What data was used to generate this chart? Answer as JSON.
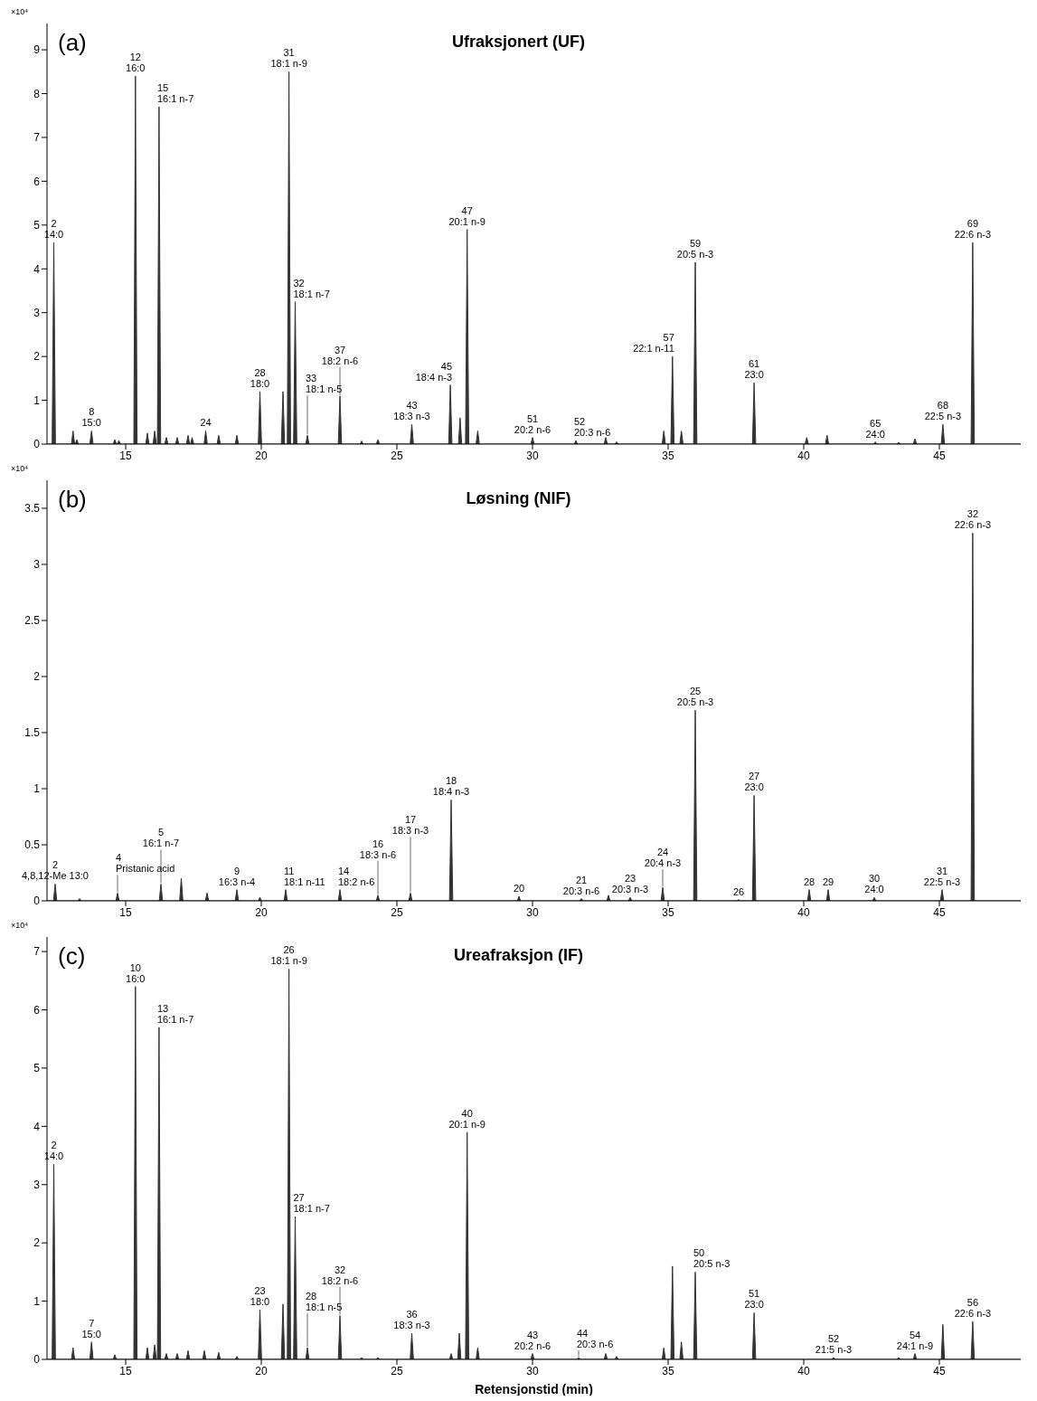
{
  "chart_data": [
    {
      "type": "area",
      "title": "Ufraksjonert (UF)",
      "ylabel": "×10⁴",
      "xlim": [
        12.1,
        48
      ],
      "xticks": [
        15,
        20,
        25,
        30,
        35,
        40,
        45
      ],
      "ylim": [
        0,
        9.6
      ],
      "yticks": [
        0,
        1,
        2,
        3,
        4,
        5,
        6,
        7,
        8,
        9
      ],
      "annotations": [
        "(a)",
        {
          "text": "2\n14:0",
          "x": 12.35,
          "y": 4.6
        },
        {
          "text": "8\n15:0",
          "x": 13.74,
          "y": 0.3
        },
        {
          "text": "12\n16:0",
          "x": 15.36,
          "y": 8.4
        },
        {
          "text": "15\n16:1 n-7",
          "x": 16.23,
          "y": 7.7
        },
        {
          "text": "24",
          "x": 17.95,
          "y": 0.3
        },
        {
          "text": "28\n18:0",
          "x": 19.95,
          "y": 1.2
        },
        {
          "text": "31\n18:1 n-9",
          "x": 21.02,
          "y": 8.5
        },
        {
          "text": "32\n18:1 n-7",
          "x": 21.25,
          "y": 3.25
        },
        {
          "text": "33\n18:1 n-5",
          "x": 21.7,
          "y": 0.2
        },
        {
          "text": "37\n18:2 n-6",
          "x": 22.9,
          "y": 1.1
        },
        {
          "text": "43\n18:3 n-3",
          "x": 25.55,
          "y": 0.45
        },
        {
          "text": "45\n18:4 n-3",
          "x": 26.97,
          "y": 1.35
        },
        {
          "text": "47\n20:1 n-9",
          "x": 27.59,
          "y": 4.9
        },
        {
          "text": "51\n20:2 n-6",
          "x": 30.0,
          "y": 0.15
        },
        {
          "text": "52\n20:3 n-6",
          "x": 31.6,
          "y": 0.08
        },
        {
          "text": "57\n22:1 n-11",
          "x": 35.16,
          "y": 2.0
        },
        {
          "text": "59\n20:5 n-3",
          "x": 36.0,
          "y": 4.15
        },
        {
          "text": "61\n23:0",
          "x": 38.17,
          "y": 1.4
        },
        {
          "text": "65\n24:0",
          "x": 42.64,
          "y": 0.05
        },
        {
          "text": "68\n22:5 n-3",
          "x": 45.13,
          "y": 0.45
        },
        {
          "text": "69\n22:6 n-3",
          "x": 46.23,
          "y": 4.6
        }
      ],
      "series": [
        {
          "color": "#333333",
          "x": [
            12.1,
            12.29,
            12.35,
            12.41,
            13.0,
            13.06,
            13.12,
            13.14,
            13.2,
            13.26,
            13.68,
            13.74,
            13.8,
            14.54,
            14.6,
            14.66,
            14.69,
            14.75,
            14.81,
            15.3,
            15.36,
            15.42,
            15.74,
            15.8,
            15.86,
            16.01,
            16.07,
            16.13,
            16.17,
            16.23,
            16.29,
            16.44,
            16.5,
            16.56,
            16.84,
            16.9,
            16.96,
            17.24,
            17.3,
            17.36,
            17.39,
            17.45,
            17.51,
            17.89,
            17.95,
            18.01,
            18.37,
            18.43,
            18.49,
            19.04,
            19.1,
            19.16,
            19.89,
            19.95,
            20.01,
            20.74,
            20.8,
            20.86,
            20.96,
            21.02,
            21.08,
            21.19,
            21.25,
            21.31,
            21.64,
            21.7,
            21.76,
            22.84,
            22.9,
            22.96,
            23.64,
            23.7,
            23.76,
            24.24,
            24.3,
            24.36,
            25.49,
            25.55,
            25.61,
            26.91,
            26.97,
            27.03,
            27.27,
            27.33,
            27.39,
            27.53,
            27.59,
            27.65,
            27.92,
            27.98,
            28.04,
            29.94,
            30.0,
            30.06,
            31.54,
            31.6,
            31.66,
            32.64,
            32.7,
            32.76,
            33.04,
            33.1,
            33.16,
            34.78,
            34.84,
            34.9,
            35.1,
            35.16,
            35.22,
            35.43,
            35.49,
            35.55,
            35.94,
            36.0,
            36.06,
            38.11,
            38.17,
            38.23,
            40.05,
            40.11,
            40.17,
            40.8,
            40.86,
            40.92,
            42.58,
            42.64,
            42.7,
            43.44,
            43.5,
            43.56,
            44.04,
            44.1,
            44.16,
            45.07,
            45.13,
            45.19,
            46.17,
            46.23,
            46.29,
            48
          ],
          "values": [
            0,
            0,
            4.6,
            0,
            0,
            0.3,
            0,
            0,
            0.1,
            0,
            0,
            0.3,
            0,
            0,
            0.1,
            0,
            0,
            0.08,
            0,
            0,
            8.4,
            0,
            0,
            0.25,
            0,
            0,
            0.3,
            0,
            0,
            7.7,
            0,
            0,
            0.15,
            0,
            0,
            0.15,
            0,
            0,
            0.2,
            0,
            0,
            0.15,
            0,
            0,
            0.3,
            0,
            0,
            0.2,
            0,
            0,
            0.2,
            0,
            0,
            1.2,
            0,
            0,
            1.2,
            0,
            0,
            8.5,
            0,
            0,
            3.25,
            0,
            0,
            0.2,
            0,
            0,
            1.1,
            0,
            0,
            0.07,
            0,
            0,
            0.1,
            0,
            0,
            0.45,
            0,
            0,
            1.35,
            0,
            0,
            0.6,
            0,
            0,
            4.9,
            0,
            0,
            0.3,
            0,
            0,
            0.15,
            0,
            0,
            0.08,
            0,
            0,
            0.15,
            0,
            0,
            0.05,
            0,
            0,
            0.3,
            0,
            0,
            2.0,
            0,
            0,
            0.3,
            0,
            0,
            4.15,
            0,
            0,
            1.4,
            0,
            0,
            0.15,
            0,
            0,
            0.2,
            0,
            0,
            0.05,
            0,
            0,
            0.04,
            0,
            0,
            0.12,
            0,
            0,
            0.45,
            0,
            0,
            4.6,
            0,
            0
          ]
        }
      ]
    },
    {
      "type": "area",
      "title": "Løsning (NIF)",
      "ylabel": "×10⁴",
      "xlim": [
        12.1,
        48
      ],
      "xticks": [
        15,
        20,
        25,
        30,
        35,
        40,
        45
      ],
      "ylim": [
        0,
        3.75
      ],
      "yticks": [
        0,
        0.5,
        1,
        1.5,
        2,
        2.5,
        3,
        3.5
      ],
      "annotations": [
        "(b)",
        {
          "text": "2\n4,8,12-Me 13:0",
          "x": 12.4,
          "y": 0.15
        },
        {
          "text": "4\nPristanic acid",
          "x": 14.7,
          "y": 0.07
        },
        {
          "text": "5\n16:1 n-7",
          "x": 16.3,
          "y": 0.15
        },
        {
          "text": "9\n16:3 n-4",
          "x": 19.1,
          "y": 0.1
        },
        {
          "text": "11\n18:1 n-11",
          "x": 20.9,
          "y": 0.1
        },
        {
          "text": "14\n18:2 n-6",
          "x": 22.9,
          "y": 0.1
        },
        {
          "text": "16\n18:3 n-6",
          "x": 24.3,
          "y": 0.05
        },
        {
          "text": "17\n18:3 n-3",
          "x": 25.5,
          "y": 0.07
        },
        {
          "text": "18\n18:4 n-3",
          "x": 27.0,
          "y": 0.9
        },
        {
          "text": "20",
          "x": 29.5,
          "y": 0.04
        },
        {
          "text": "21\n20:3 n-6",
          "x": 31.8,
          "y": 0.02
        },
        {
          "text": "23\n20:3 n-3",
          "x": 33.6,
          "y": 0.03
        },
        {
          "text": "24\n20:4 n-3",
          "x": 34.8,
          "y": 0.12
        },
        {
          "text": "25\n20:5 n-3",
          "x": 36.0,
          "y": 1.7
        },
        {
          "text": "26",
          "x": 37.6,
          "y": 0.01
        },
        {
          "text": "27\n23:0",
          "x": 38.17,
          "y": 0.94
        },
        {
          "text": "28",
          "x": 40.2,
          "y": 0.1
        },
        {
          "text": "29",
          "x": 40.9,
          "y": 0.1
        },
        {
          "text": "30\n24:0",
          "x": 42.6,
          "y": 0.03
        },
        {
          "text": "31\n22:5 n-3",
          "x": 45.1,
          "y": 0.1
        },
        {
          "text": "32\n22:6 n-3",
          "x": 46.23,
          "y": 3.28
        }
      ],
      "series": [
        {
          "color": "#333333",
          "x": [
            12.1,
            12.34,
            12.4,
            12.46,
            13.24,
            13.3,
            13.36,
            14.64,
            14.7,
            14.76,
            16.24,
            16.3,
            16.36,
            16.99,
            17.05,
            17.11,
            17.94,
            18.0,
            18.06,
            19.04,
            19.1,
            19.16,
            19.89,
            19.95,
            20.01,
            20.84,
            20.9,
            20.96,
            22.84,
            22.9,
            22.96,
            24.24,
            24.3,
            24.36,
            25.44,
            25.5,
            25.56,
            26.94,
            27.0,
            27.06,
            29.44,
            29.5,
            29.56,
            31.74,
            31.8,
            31.86,
            32.74,
            32.8,
            32.86,
            33.54,
            33.6,
            33.66,
            34.74,
            34.8,
            34.86,
            35.94,
            36.0,
            36.06,
            37.54,
            37.6,
            37.66,
            38.11,
            38.17,
            38.23,
            40.14,
            40.2,
            40.26,
            40.84,
            40.9,
            40.96,
            42.54,
            42.6,
            42.66,
            45.04,
            45.1,
            45.16,
            46.17,
            46.23,
            46.29,
            48
          ],
          "values": [
            0,
            0,
            0.15,
            0,
            0,
            0.02,
            0,
            0,
            0.07,
            0,
            0,
            0.15,
            0,
            0,
            0.2,
            0,
            0,
            0.07,
            0,
            0,
            0.1,
            0,
            0,
            0.03,
            0,
            0,
            0.1,
            0,
            0,
            0.1,
            0,
            0,
            0.05,
            0,
            0,
            0.07,
            0,
            0,
            0.9,
            0,
            0,
            0.04,
            0,
            0,
            0.02,
            0,
            0,
            0.05,
            0,
            0,
            0.03,
            0,
            0,
            0.12,
            0,
            0,
            1.7,
            0,
            0,
            0.01,
            0,
            0,
            0.94,
            0,
            0,
            0.1,
            0,
            0,
            0.1,
            0,
            0,
            0.03,
            0,
            0,
            0.1,
            0,
            0,
            3.28,
            0,
            0
          ]
        }
      ]
    },
    {
      "type": "area",
      "title": "Ureafraksjon (IF)",
      "ylabel": "×10⁴",
      "xlabel": "Retensjonstid (min)",
      "xlim": [
        12.1,
        48
      ],
      "xticks": [
        15,
        20,
        25,
        30,
        35,
        40,
        45
      ],
      "ylim": [
        0,
        7.25
      ],
      "yticks": [
        0,
        1,
        2,
        3,
        4,
        5,
        6,
        7
      ],
      "annotations": [
        "(c)",
        {
          "text": "2\n14:0",
          "x": 12.35,
          "y": 3.35
        },
        {
          "text": "7\n15:0",
          "x": 13.74,
          "y": 0.3
        },
        {
          "text": "10\n16:0",
          "x": 15.36,
          "y": 6.4
        },
        {
          "text": "13\n16:1 n-7",
          "x": 16.23,
          "y": 5.7
        },
        {
          "text": "23\n18:0",
          "x": 19.95,
          "y": 0.85
        },
        {
          "text": "26\n18:1 n-9",
          "x": 21.02,
          "y": 6.7
        },
        {
          "text": "27\n18:1 n-7",
          "x": 21.25,
          "y": 2.45
        },
        {
          "text": "28\n18:1 n-5",
          "x": 21.7,
          "y": 0.2
        },
        {
          "text": "32\n18:2 n-6",
          "x": 22.9,
          "y": 0.75
        },
        {
          "text": "36\n18:3 n-3",
          "x": 25.55,
          "y": 0.45
        },
        {
          "text": "40\n20:1 n-9",
          "x": 27.59,
          "y": 3.9
        },
        {
          "text": "43\n20:2 n-6",
          "x": 30.0,
          "y": 0.1
        },
        {
          "text": "44\n20:3 n-6",
          "x": 31.7,
          "y": 0.03
        },
        {
          "text": "50\n20:5 n-3",
          "x": 36.0,
          "y": 1.5
        },
        {
          "text": "51\n23:0",
          "x": 38.17,
          "y": 0.8
        },
        {
          "text": "52\n21:5 n-3",
          "x": 41.1,
          "y": 0.03
        },
        {
          "text": "54\n24:1 n-9",
          "x": 44.1,
          "y": 0.1
        },
        {
          "text": "56\n22:6 n-3",
          "x": 46.23,
          "y": 0.65
        }
      ],
      "series": [
        {
          "color": "#333333",
          "x": [
            12.1,
            12.29,
            12.35,
            12.41,
            13.0,
            13.06,
            13.12,
            13.68,
            13.74,
            13.8,
            14.54,
            14.6,
            14.66,
            15.3,
            15.36,
            15.42,
            15.74,
            15.8,
            15.86,
            16.01,
            16.07,
            16.13,
            16.17,
            16.23,
            16.29,
            16.44,
            16.5,
            16.56,
            16.84,
            16.9,
            16.96,
            17.24,
            17.3,
            17.36,
            17.84,
            17.9,
            17.96,
            18.37,
            18.43,
            18.49,
            19.04,
            19.1,
            19.16,
            19.89,
            19.95,
            20.01,
            20.74,
            20.8,
            20.86,
            20.96,
            21.02,
            21.08,
            21.19,
            21.25,
            21.31,
            21.64,
            21.7,
            21.76,
            22.84,
            22.9,
            22.96,
            23.64,
            23.7,
            23.76,
            24.24,
            24.3,
            24.36,
            25.49,
            25.55,
            25.61,
            26.94,
            27.0,
            27.06,
            27.24,
            27.3,
            27.36,
            27.53,
            27.59,
            27.65,
            27.92,
            27.98,
            28.04,
            29.94,
            30.0,
            30.06,
            31.64,
            31.7,
            31.76,
            32.64,
            32.7,
            32.76,
            33.04,
            33.1,
            33.16,
            34.78,
            34.84,
            34.9,
            35.1,
            35.16,
            35.22,
            35.43,
            35.49,
            35.55,
            35.94,
            36.0,
            36.06,
            38.11,
            38.17,
            38.23,
            41.04,
            41.1,
            41.16,
            43.44,
            43.5,
            43.56,
            44.04,
            44.1,
            44.16,
            45.07,
            45.13,
            45.19,
            46.17,
            46.23,
            46.29,
            48
          ],
          "values": [
            0,
            0,
            3.35,
            0,
            0,
            0.2,
            0,
            0,
            0.3,
            0,
            0,
            0.08,
            0,
            0,
            6.4,
            0,
            0,
            0.2,
            0,
            0,
            0.25,
            0,
            0,
            5.7,
            0,
            0,
            0.1,
            0,
            0,
            0.1,
            0,
            0,
            0.15,
            0,
            0,
            0.15,
            0,
            0,
            0.12,
            0,
            0,
            0.05,
            0,
            0,
            0.85,
            0,
            0,
            0.95,
            0,
            0,
            6.7,
            0,
            0,
            2.45,
            0,
            0,
            0.2,
            0,
            0,
            0.75,
            0,
            0,
            0.03,
            0,
            0,
            0.03,
            0,
            0,
            0.45,
            0,
            0,
            0.1,
            0,
            0,
            0.45,
            0,
            0,
            3.9,
            0,
            0,
            0.2,
            0,
            0,
            0.1,
            0,
            0,
            0.03,
            0,
            0,
            0.1,
            0,
            0,
            0.05,
            0,
            0,
            0.2,
            0,
            0,
            1.6,
            0,
            0,
            0.3,
            0,
            0,
            1.5,
            0,
            0,
            0.8,
            0,
            0,
            0.03,
            0,
            0,
            0.03,
            0,
            0,
            0.1,
            0,
            0,
            0.6,
            0,
            0,
            0.65,
            0,
            0
          ]
        }
      ]
    }
  ]
}
